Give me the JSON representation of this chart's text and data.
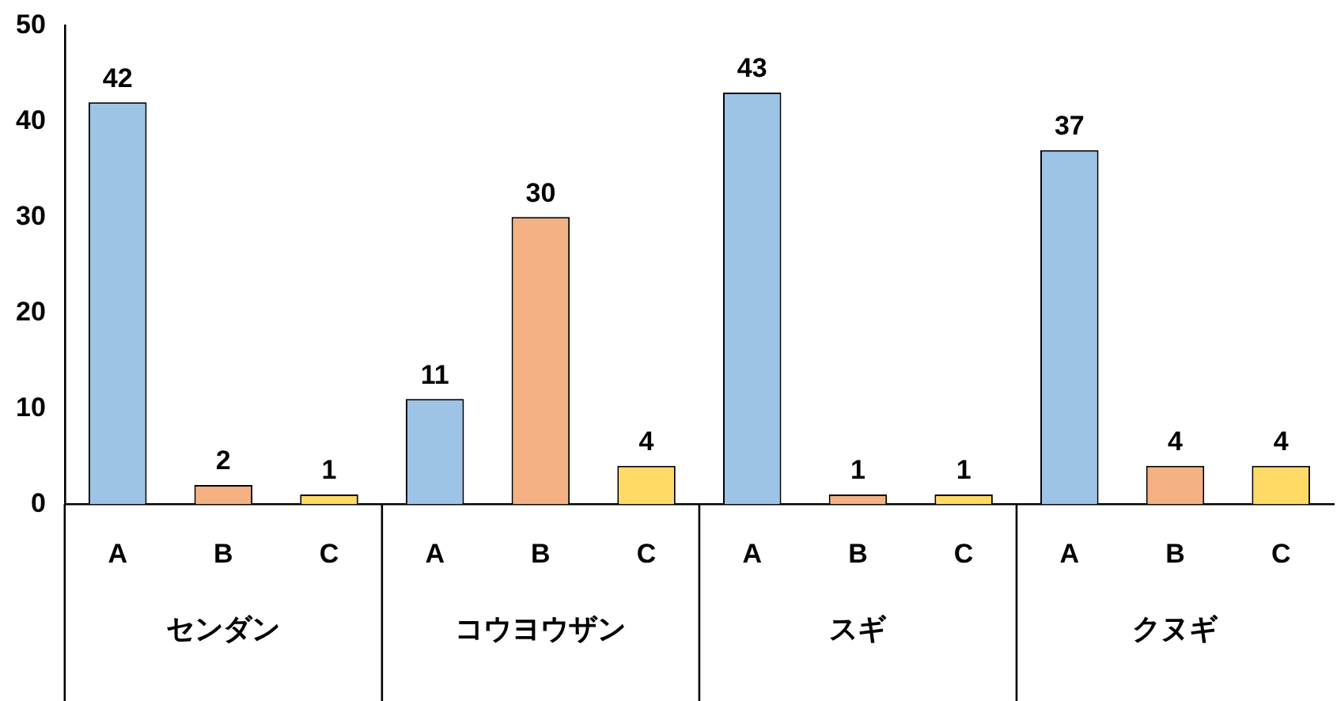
{
  "chart_data": {
    "type": "bar",
    "categories": [
      "A",
      "B",
      "C",
      "A",
      "B",
      "C",
      "A",
      "B",
      "C",
      "A",
      "B",
      "C"
    ],
    "values": [
      42,
      2,
      1,
      11,
      30,
      4,
      43,
      1,
      1,
      37,
      4,
      4
    ],
    "colors": [
      "#9dc3e6",
      "#f4b183",
      "#ffd966",
      "#9dc3e6",
      "#f4b183",
      "#ffd966",
      "#9dc3e6",
      "#f4b183",
      "#ffd966",
      "#9dc3e6",
      "#f4b183",
      "#ffd966"
    ],
    "ylim": [
      0,
      50
    ],
    "yticks": [
      0,
      10,
      20,
      30,
      40,
      50
    ],
    "annotations": [
      "センダン",
      "コウヨウザン",
      "スギ",
      "クヌギ"
    ],
    "data_labels": true,
    "grid": false,
    "legend": false
  }
}
